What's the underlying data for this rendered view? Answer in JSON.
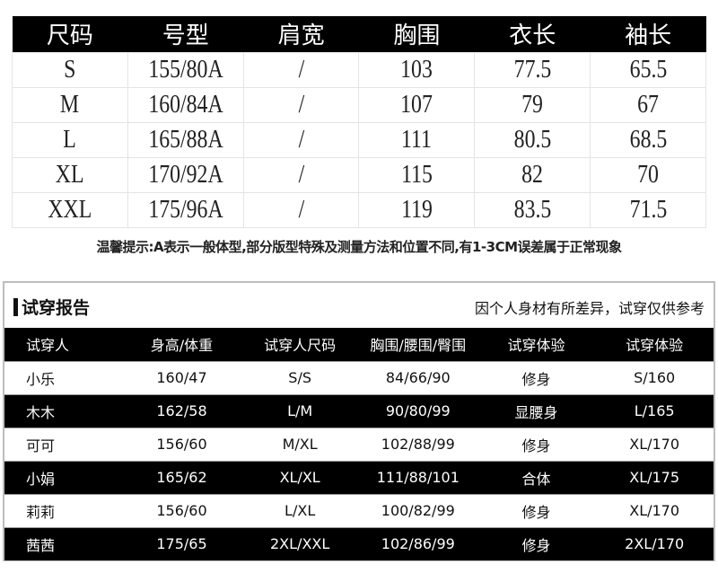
{
  "size_chart": {
    "headers": [
      "尺码",
      "号型",
      "肩宽",
      "胸围",
      "衣长",
      "袖长"
    ],
    "rows": [
      [
        "S",
        "155/80A",
        "/",
        "103",
        "77.5",
        "65.5"
      ],
      [
        "M",
        "160/84A",
        "/",
        "107",
        "79",
        "67"
      ],
      [
        "L",
        "165/88A",
        "/",
        "111",
        "80.5",
        "68.5"
      ],
      [
        "XL",
        "170/92A",
        "/",
        "115",
        "82",
        "70"
      ],
      [
        "XXL",
        "175/96A",
        "/",
        "119",
        "83.5",
        "71.5"
      ]
    ]
  },
  "note": "温馨提示:A表示一般体型,部分版型特殊及测量方法和位置不同,有1-3CM误差属于正常现象",
  "trial_report": {
    "title": "试穿报告",
    "disclaimer": "因个人身材有所差异，试穿仅供参考",
    "headers": [
      "试穿人",
      "身高/体重",
      "试穿人尺码",
      "胸围/腰围/臀围",
      "试穿体验",
      "试穿体验"
    ],
    "rows": [
      [
        "小乐",
        "160/47",
        "S/S",
        "84/66/90",
        "修身",
        "S/160"
      ],
      [
        "木木",
        "162/58",
        "L/M",
        "90/80/99",
        "显腰身",
        "L/165"
      ],
      [
        "可可",
        "156/60",
        "M/XL",
        "102/88/99",
        "修身",
        "XL/170"
      ],
      [
        "小娟",
        "165/62",
        "XL/XL",
        "111/88/101",
        "合体",
        "XL/175"
      ],
      [
        "莉莉",
        "156/60",
        "L/XL",
        "100/82/99",
        "修身",
        "XL/170"
      ],
      [
        "茜茜",
        "175/65",
        "2XL/XXL",
        "102/86/99",
        "修身",
        "2XL/170"
      ]
    ]
  }
}
